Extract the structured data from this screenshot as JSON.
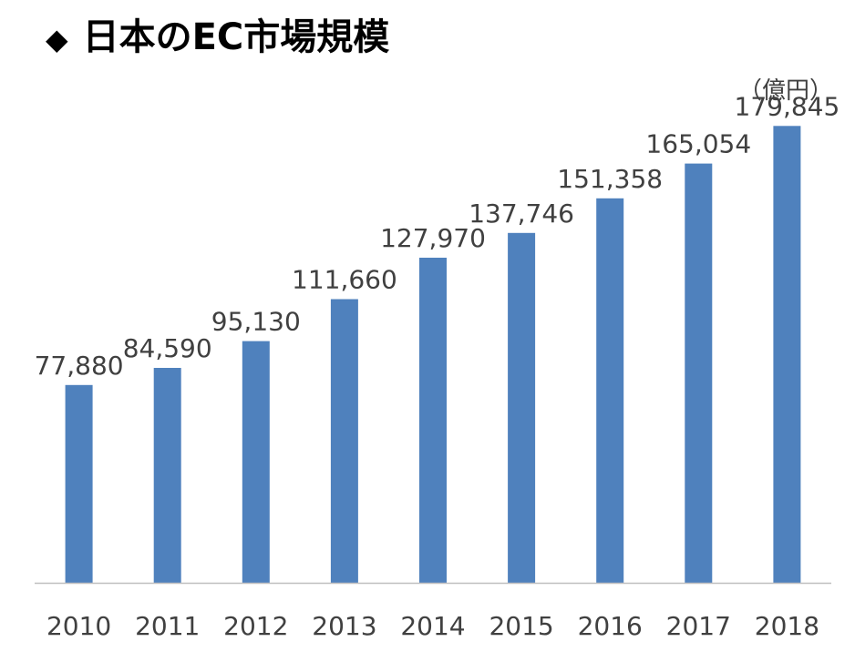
{
  "page": {
    "bullet": "◆",
    "title": "日本のEC市場規模"
  },
  "colors": {
    "bar": "#4F81BD",
    "axis": "#BFBFBF",
    "text": "#404040"
  },
  "chart_data": {
    "type": "bar",
    "title": "日本のEC市場規模",
    "unit_label": "（億円）",
    "categories": [
      "2010",
      "2011",
      "2012",
      "2013",
      "2014",
      "2015",
      "2016",
      "2017",
      "2018"
    ],
    "values": [
      77880,
      84590,
      95130,
      111660,
      127970,
      137746,
      151358,
      165054,
      179845
    ],
    "value_labels": [
      "77,880",
      "84,590",
      "95,130",
      "111,660",
      "127,970",
      "137,746",
      "151,358",
      "165,054",
      "179,845"
    ],
    "ylim": [
      0,
      190000
    ],
    "grid": false,
    "legend": "none"
  }
}
